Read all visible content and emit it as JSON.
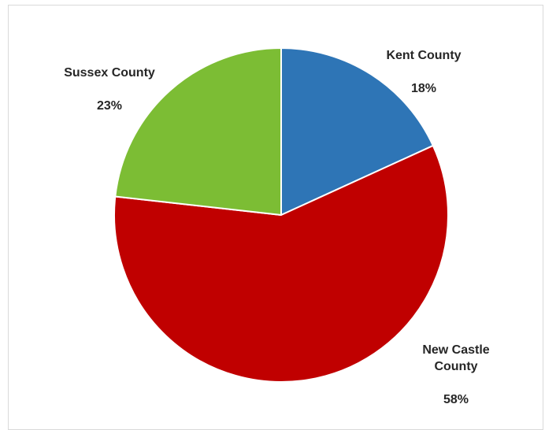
{
  "chart_data": {
    "type": "pie",
    "title": "",
    "slices": [
      {
        "name": "Kent County",
        "value": 18,
        "percent_label": "18%",
        "color": "#2e75b6"
      },
      {
        "name": "New Castle County",
        "value": 58,
        "percent_label": "58%",
        "color": "#c00000"
      },
      {
        "name": "Sussex County",
        "value": 23,
        "percent_label": "23%",
        "color": "#7cbd34"
      }
    ],
    "legend": "none",
    "data_labels": "outside, category name and percentage"
  },
  "labels": {
    "kent_name": "Kent County",
    "kent_pct": "18%",
    "newcastle_name": "New Castle\nCounty",
    "newcastle_pct": "58%",
    "sussex_name": "Sussex County",
    "sussex_pct": "23%"
  }
}
